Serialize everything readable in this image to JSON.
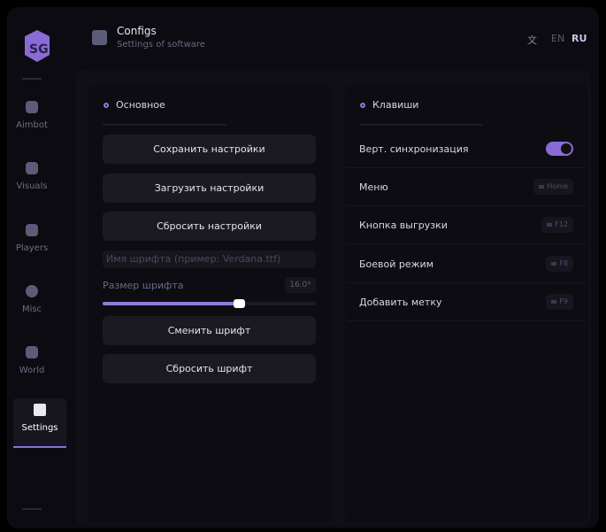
{
  "header": {
    "title": "Configs",
    "subtitle": "Settings of software",
    "lang": [
      "EN",
      "RU"
    ],
    "active_lang": "RU"
  },
  "sidebar": {
    "items": [
      {
        "label": "Aimbot",
        "icon": "skull-icon"
      },
      {
        "label": "Visuals",
        "icon": "vr-glasses-icon"
      },
      {
        "label": "Players",
        "icon": "users-icon"
      },
      {
        "label": "Misc",
        "icon": "chat-icon"
      },
      {
        "label": "World",
        "icon": "briefcase-icon"
      },
      {
        "label": "Settings",
        "icon": "list-icon",
        "active": true
      }
    ]
  },
  "general": {
    "title": "Основное",
    "save": "Сохранить настройки",
    "load": "Загрузить настройки",
    "reset": "Сбросить настройки",
    "font_placeholder": "Имя шрифта (пример: Verdana.ttf)",
    "font_size_label": "Размер шрифта",
    "font_size_value": "16.0*",
    "font_size_fraction": 0.64,
    "change_font": "Сменить шрифт",
    "reset_font": "Сбросить шрифт"
  },
  "keys": {
    "title": "Клавиши",
    "rows": [
      {
        "label": "Верт. синхронизация",
        "toggle": true
      },
      {
        "label": "Меню",
        "key": "Home"
      },
      {
        "label": "Кнопка выгрузки",
        "key": "F12"
      },
      {
        "label": "Боевой режим",
        "key": "F8"
      },
      {
        "label": "Добавить метку",
        "key": "F9"
      }
    ]
  },
  "colors": {
    "accent": "#8a6bd6"
  }
}
